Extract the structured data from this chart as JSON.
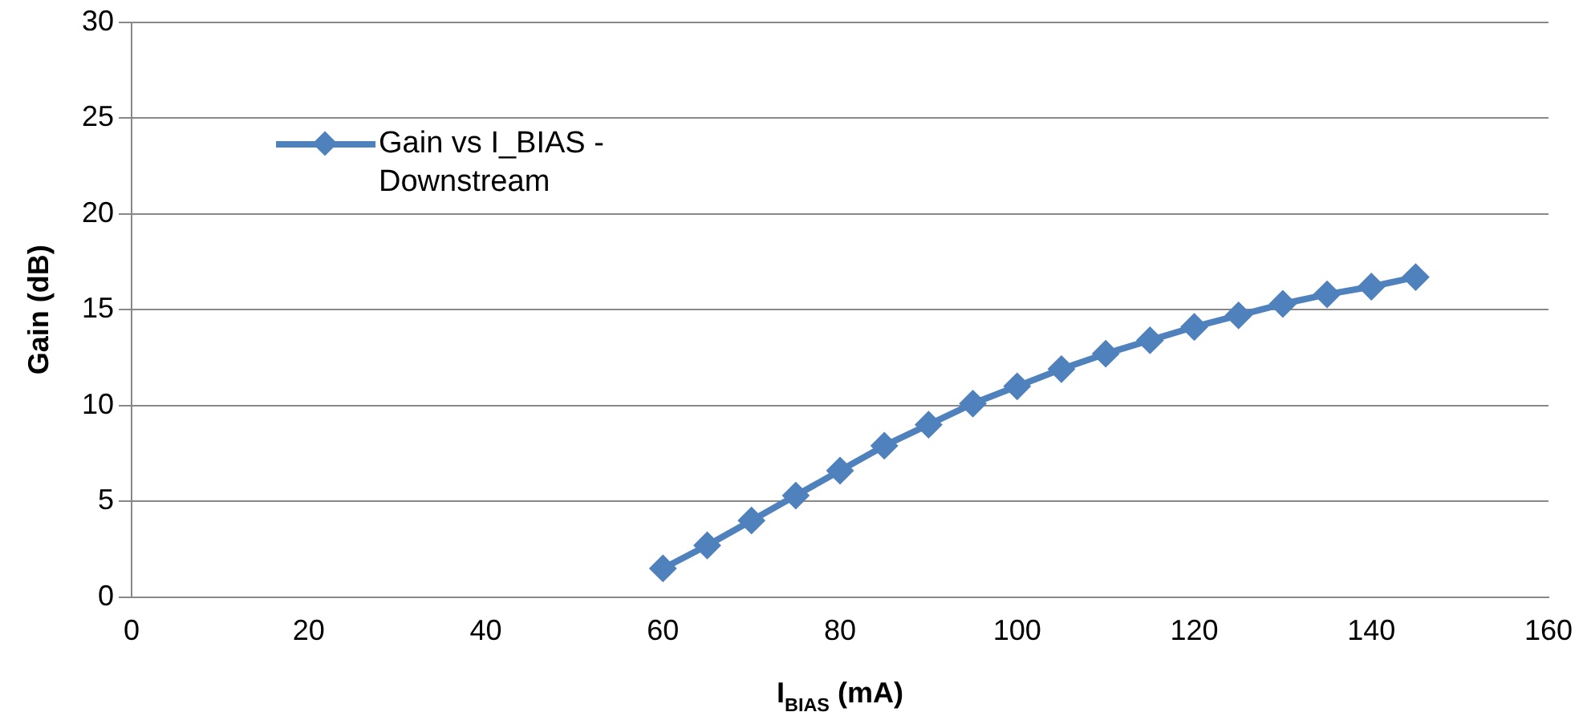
{
  "chart_data": {
    "type": "line",
    "xlabel": "I$_{BIAS}$ (mA)",
    "ylabel": "Gain (dB)",
    "x": [
      60,
      65,
      70,
      75,
      80,
      85,
      90,
      95,
      100,
      105,
      110,
      115,
      120,
      125,
      130,
      135,
      140,
      145
    ],
    "series": [
      {
        "name": "Gain vs I_BIAS - Downstream",
        "color": "#4f81bd",
        "values": [
          1.5,
          2.7,
          4.0,
          5.3,
          6.6,
          7.9,
          9.0,
          10.1,
          11.0,
          11.9,
          12.7,
          13.4,
          14.1,
          14.7,
          15.3,
          15.8,
          16.2,
          16.7
        ]
      }
    ],
    "xlim": [
      0,
      160
    ],
    "xticks": [
      0,
      20,
      40,
      60,
      80,
      100,
      120,
      140,
      160
    ],
    "ylim": [
      0,
      30
    ],
    "yticks": [
      0,
      5,
      10,
      15,
      20,
      25,
      30
    ],
    "grid": "y",
    "legend": "top left",
    "marker": "diamond",
    "line_style": "solid"
  }
}
